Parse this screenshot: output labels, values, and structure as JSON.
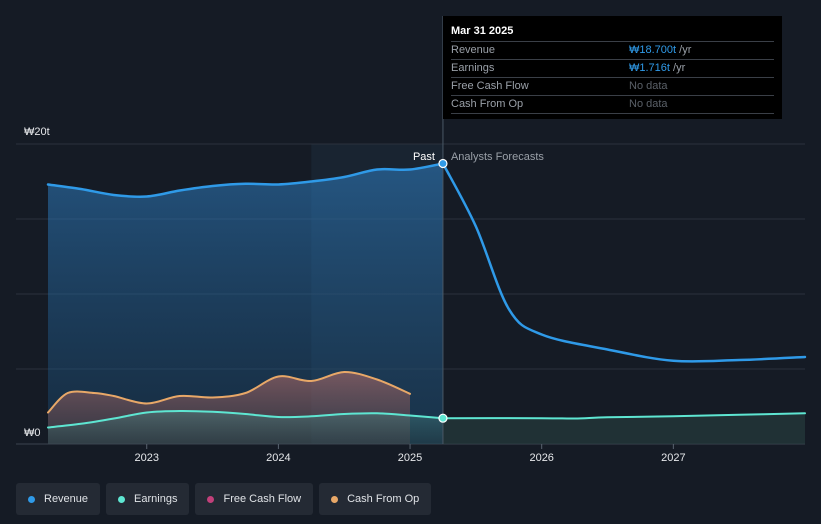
{
  "tooltip": {
    "date": "Mar 31 2025",
    "rows": [
      {
        "label": "Revenue",
        "value": "₩18.700t",
        "unit": "/yr"
      },
      {
        "label": "Earnings",
        "value": "₩1.716t",
        "unit": "/yr"
      },
      {
        "label": "Free Cash Flow",
        "value": "No data",
        "unit": ""
      },
      {
        "label": "Cash From Op",
        "value": "No data",
        "unit": ""
      }
    ]
  },
  "legend": [
    {
      "label": "Revenue",
      "color": "#2f9ae8"
    },
    {
      "label": "Earnings",
      "color": "#5ee6d2"
    },
    {
      "label": "Free Cash Flow",
      "color": "#c2407a"
    },
    {
      "label": "Cash From Op",
      "color": "#e8a868"
    }
  ],
  "chart_data": {
    "type": "area",
    "y_top_label": "₩20t",
    "y_bottom_label": "₩0",
    "ylim": [
      0,
      20
    ],
    "xlim": [
      2022.25,
      2028.0
    ],
    "x_ticks": [
      2023,
      2024,
      2025,
      2026,
      2027
    ],
    "x_tick_labels": [
      "2023",
      "2024",
      "2025",
      "2026",
      "2027"
    ],
    "divider_x": 2025.25,
    "past_highlight_start": 2024.25,
    "past_label": "Past",
    "forecast_label": "Analysts Forecasts",
    "grid": true,
    "series": [
      {
        "name": "Revenue",
        "color": "#2f9ae8",
        "past": [
          [
            2022.25,
            17.3
          ],
          [
            2022.5,
            17.0
          ],
          [
            2022.75,
            16.6
          ],
          [
            2023.0,
            16.5
          ],
          [
            2023.25,
            16.9
          ],
          [
            2023.5,
            17.2
          ],
          [
            2023.75,
            17.35
          ],
          [
            2024.0,
            17.3
          ],
          [
            2024.25,
            17.5
          ],
          [
            2024.5,
            17.8
          ],
          [
            2024.75,
            18.3
          ],
          [
            2025.0,
            18.3
          ],
          [
            2025.25,
            18.7
          ]
        ],
        "forecast": [
          [
            2025.25,
            18.7
          ],
          [
            2025.5,
            14.5
          ],
          [
            2025.75,
            9.0
          ],
          [
            2026.0,
            7.3
          ],
          [
            2026.5,
            6.3
          ],
          [
            2027.0,
            5.55
          ],
          [
            2027.5,
            5.6
          ],
          [
            2028.0,
            5.8
          ]
        ]
      },
      {
        "name": "Earnings",
        "color": "#5ee6d2",
        "past": [
          [
            2022.25,
            1.1
          ],
          [
            2022.5,
            1.35
          ],
          [
            2022.75,
            1.7
          ],
          [
            2023.0,
            2.1
          ],
          [
            2023.25,
            2.2
          ],
          [
            2023.5,
            2.15
          ],
          [
            2023.75,
            2.0
          ],
          [
            2024.0,
            1.8
          ],
          [
            2024.25,
            1.85
          ],
          [
            2024.5,
            2.0
          ],
          [
            2024.75,
            2.05
          ],
          [
            2025.0,
            1.9
          ],
          [
            2025.25,
            1.72
          ]
        ],
        "forecast": [
          [
            2025.25,
            1.72
          ],
          [
            2026.0,
            1.72
          ],
          [
            2026.25,
            1.7
          ],
          [
            2026.5,
            1.78
          ],
          [
            2027.0,
            1.85
          ],
          [
            2027.5,
            1.95
          ],
          [
            2028.0,
            2.05
          ]
        ]
      },
      {
        "name": "Cash From Op",
        "color": "#e8a868",
        "past": [
          [
            2022.25,
            2.1
          ],
          [
            2022.4,
            3.4
          ],
          [
            2022.6,
            3.4
          ],
          [
            2022.75,
            3.2
          ],
          [
            2023.0,
            2.7
          ],
          [
            2023.25,
            3.2
          ],
          [
            2023.5,
            3.1
          ],
          [
            2023.75,
            3.4
          ],
          [
            2024.0,
            4.5
          ],
          [
            2024.25,
            4.2
          ],
          [
            2024.5,
            4.8
          ],
          [
            2024.75,
            4.3
          ],
          [
            2025.0,
            3.35
          ]
        ],
        "forecast": []
      },
      {
        "name": "Free Cash Flow",
        "color": "#c2407a",
        "past": [],
        "forecast": []
      }
    ]
  }
}
